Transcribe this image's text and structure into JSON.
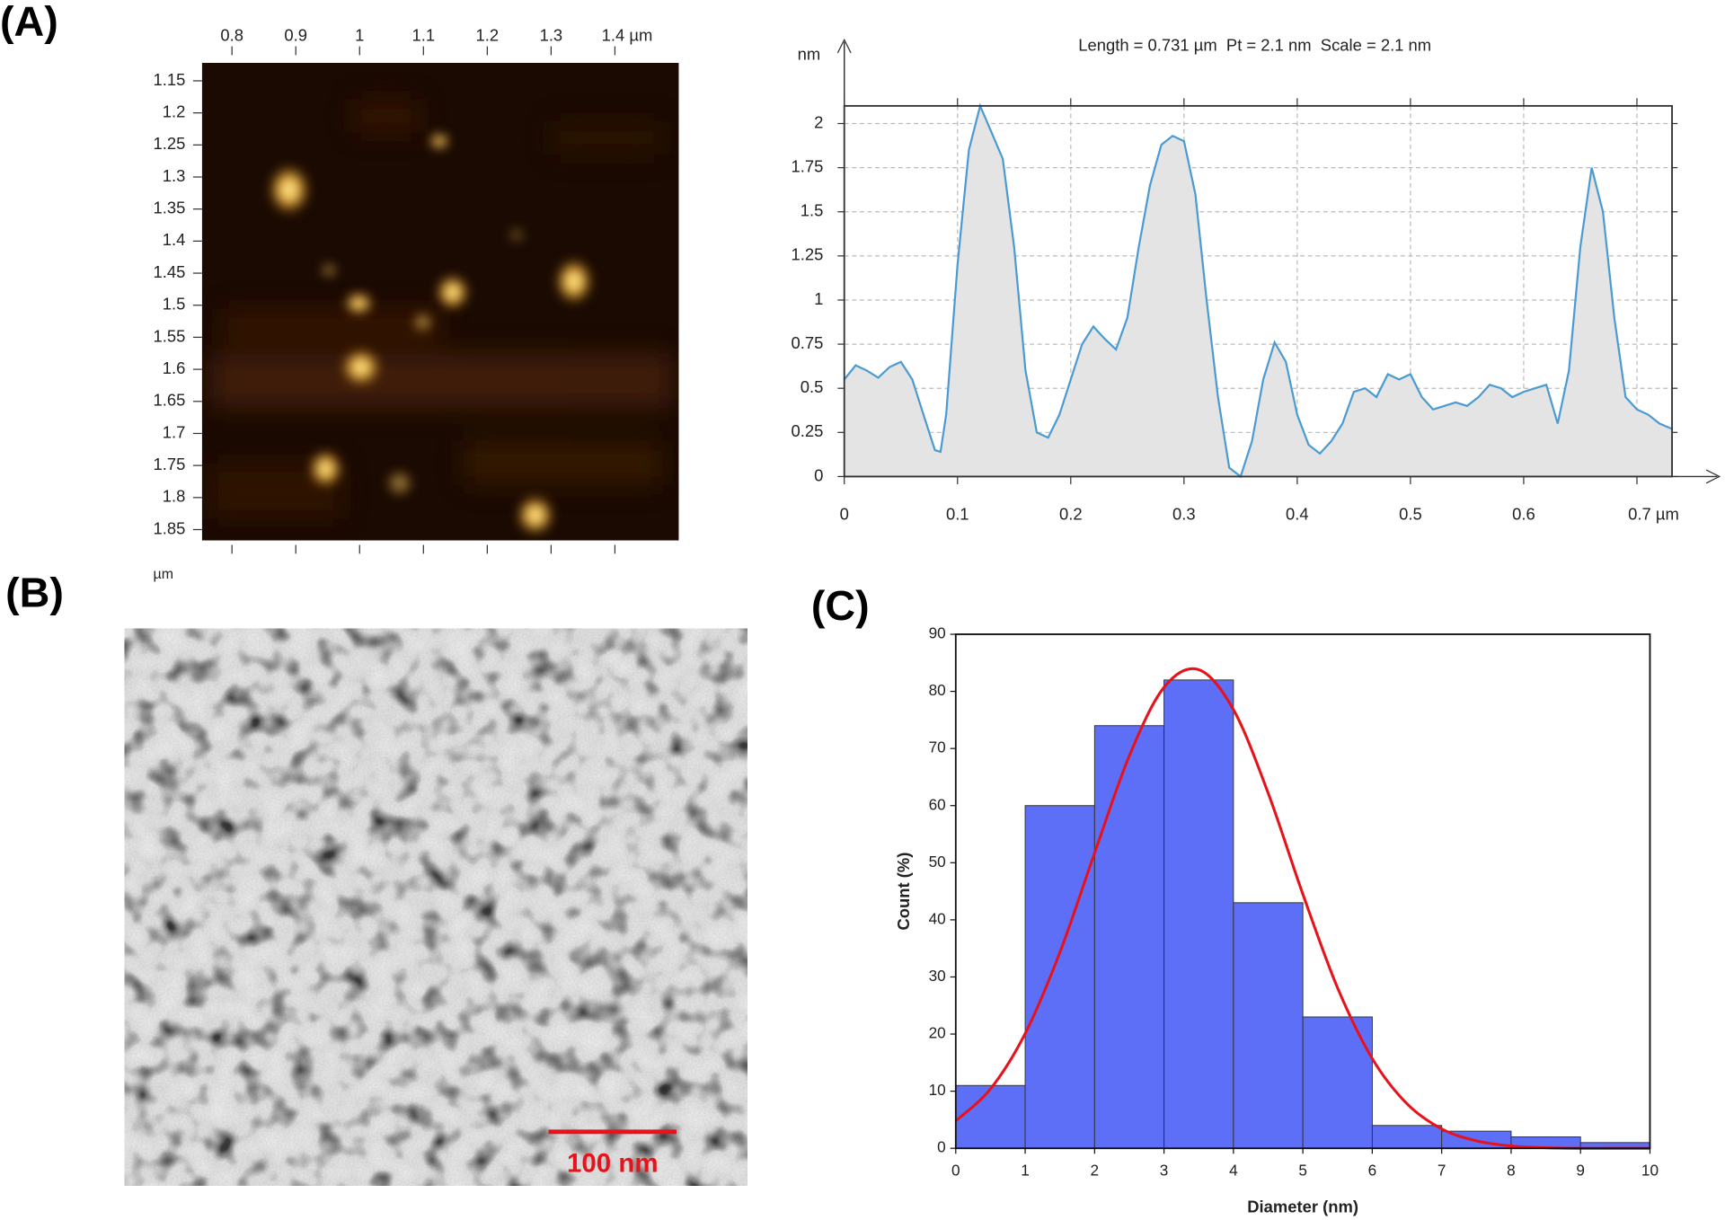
{
  "chart_data": [
    {
      "type": "image",
      "panel_label": "(A)",
      "unit_label": "µm",
      "xlim": [
        0.753,
        1.5
      ],
      "ylim": [
        1.122,
        1.867
      ],
      "xticks": [
        0.8,
        0.9,
        1,
        1.1,
        1.2,
        1.3,
        {
          "value": 1.4,
          "label": "1.4 µm"
        }
      ],
      "yticks": [
        1.15,
        1.2,
        1.25,
        1.3,
        1.35,
        1.4,
        1.45,
        1.5,
        1.55,
        1.6,
        1.65,
        1.7,
        1.75,
        1.8,
        1.85
      ]
    },
    {
      "type": "line",
      "title": "Length = 0.731 µm  Pt = 2.1 nm  Scale = 2.1 nm",
      "ylabel": "nm",
      "color": "#4a9bd1",
      "area_color": "#e4e4e4",
      "grid": true,
      "xlim": [
        0,
        0.731
      ],
      "ylim": [
        0,
        2.1
      ],
      "xticks": [
        0,
        0.1,
        0.2,
        0.3,
        0.4,
        0.5,
        0.6,
        {
          "value": 0.7,
          "label": "0.7 µm"
        }
      ],
      "yticks": [
        0,
        0.25,
        0.5,
        0.75,
        1,
        1.25,
        1.5,
        1.75,
        2
      ],
      "x": [
        0,
        0.01,
        0.02,
        0.03,
        0.04,
        0.05,
        0.06,
        0.07,
        0.08,
        0.085,
        0.09,
        0.1,
        0.11,
        0.12,
        0.13,
        0.14,
        0.15,
        0.16,
        0.17,
        0.18,
        0.19,
        0.2,
        0.21,
        0.22,
        0.23,
        0.24,
        0.25,
        0.26,
        0.27,
        0.28,
        0.29,
        0.3,
        0.31,
        0.32,
        0.33,
        0.34,
        0.35,
        0.36,
        0.37,
        0.38,
        0.39,
        0.4,
        0.41,
        0.42,
        0.43,
        0.44,
        0.45,
        0.46,
        0.47,
        0.48,
        0.49,
        0.5,
        0.51,
        0.52,
        0.53,
        0.54,
        0.55,
        0.56,
        0.57,
        0.58,
        0.59,
        0.6,
        0.61,
        0.62,
        0.63,
        0.64,
        0.65,
        0.66,
        0.67,
        0.68,
        0.69,
        0.7,
        0.71,
        0.72,
        0.731
      ],
      "values": [
        0.55,
        0.63,
        0.6,
        0.56,
        0.62,
        0.65,
        0.55,
        0.35,
        0.15,
        0.14,
        0.35,
        1.2,
        1.85,
        2.1,
        1.95,
        1.8,
        1.3,
        0.6,
        0.25,
        0.22,
        0.35,
        0.55,
        0.75,
        0.85,
        0.78,
        0.72,
        0.9,
        1.3,
        1.65,
        1.88,
        1.93,
        1.9,
        1.6,
        1.0,
        0.45,
        0.05,
        0.0,
        0.2,
        0.55,
        0.76,
        0.65,
        0.35,
        0.18,
        0.13,
        0.2,
        0.3,
        0.48,
        0.5,
        0.45,
        0.58,
        0.55,
        0.58,
        0.45,
        0.38,
        0.4,
        0.42,
        0.4,
        0.45,
        0.52,
        0.5,
        0.45,
        0.48,
        0.5,
        0.52,
        0.3,
        0.6,
        1.3,
        1.75,
        1.5,
        0.9,
        0.45,
        0.38,
        0.35,
        0.3,
        0.27
      ]
    },
    {
      "type": "histogram",
      "panel_label": "(C)",
      "xlabel": "Diameter (nm)",
      "ylabel": "Count (%)",
      "color": "#5e6ff7",
      "xlim": [
        0,
        10
      ],
      "ylim": [
        0,
        90
      ],
      "xticks": [
        0,
        1,
        2,
        3,
        4,
        5,
        6,
        7,
        8,
        9,
        10
      ],
      "yticks": [
        0,
        10,
        20,
        30,
        40,
        50,
        60,
        70,
        80,
        90
      ],
      "bins": [
        0,
        1,
        2,
        3,
        4,
        5,
        6,
        7,
        8,
        9,
        10
      ],
      "values": [
        11,
        60,
        74,
        82,
        43,
        23,
        4,
        3,
        2,
        1
      ],
      "fit": {
        "color": "#e8121a",
        "x": [
          0,
          0.5,
          1,
          1.5,
          2,
          2.5,
          3,
          3.5,
          4,
          4.5,
          5,
          5.5,
          6,
          6.5,
          7,
          7.5,
          8,
          8.5,
          9,
          9.5,
          10
        ],
        "values": [
          4.8,
          10.4,
          20.1,
          34.3,
          51.7,
          68.7,
          80.7,
          83.8,
          76.8,
          62.2,
          44.5,
          28.1,
          15.7,
          7.8,
          3.4,
          1.3,
          0.4,
          0.1,
          0,
          0,
          0
        ]
      }
    }
  ],
  "tem_image": {
    "panel_label": "(B)",
    "scale_bar": "100 nm"
  }
}
